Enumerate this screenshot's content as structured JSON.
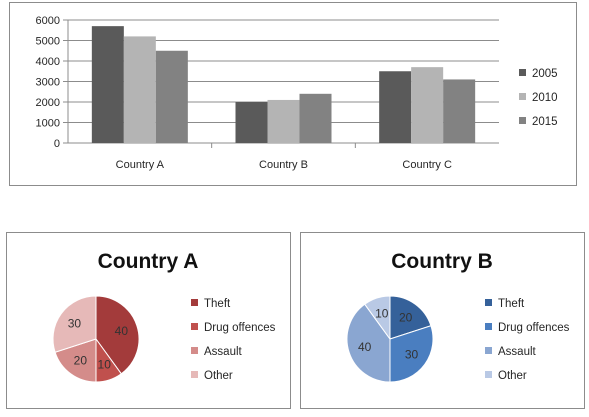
{
  "chart_data": [
    {
      "type": "bar",
      "categories": [
        "Country A",
        "Country B",
        "Country C"
      ],
      "series": [
        {
          "name": "2005",
          "values": [
            5700,
            2000,
            3500
          ],
          "color": "#5a5a5a"
        },
        {
          "name": "2010",
          "values": [
            5200,
            2100,
            3700
          ],
          "color": "#b4b4b4"
        },
        {
          "name": "2015",
          "values": [
            4500,
            2400,
            3100
          ],
          "color": "#828282"
        }
      ],
      "yticks": [
        "0",
        "1000",
        "2000",
        "3000",
        "4000",
        "5000",
        "6000"
      ],
      "ylim": [
        0,
        6000
      ],
      "grid": true,
      "legend": "right"
    },
    {
      "type": "pie",
      "title": "Country A",
      "labels": [
        "Theft",
        "Drug offences",
        "Assault",
        "Other"
      ],
      "values": [
        40,
        10,
        20,
        30
      ],
      "value_labels": [
        "40",
        "10",
        "20",
        "30"
      ],
      "colors": [
        "#a33b3b",
        "#c0504d",
        "#d48c8a",
        "#e6b9b8"
      ],
      "legend": "right"
    },
    {
      "type": "pie",
      "title": "Country B",
      "labels": [
        "Theft",
        "Drug offences",
        "Assault",
        "Other"
      ],
      "values": [
        20,
        30,
        40,
        10
      ],
      "value_labels": [
        "20",
        "30",
        "40",
        "10"
      ],
      "colors": [
        "#35619a",
        "#4a7ec0",
        "#8aa6d1",
        "#b9c9e5"
      ],
      "legend": "right"
    }
  ]
}
